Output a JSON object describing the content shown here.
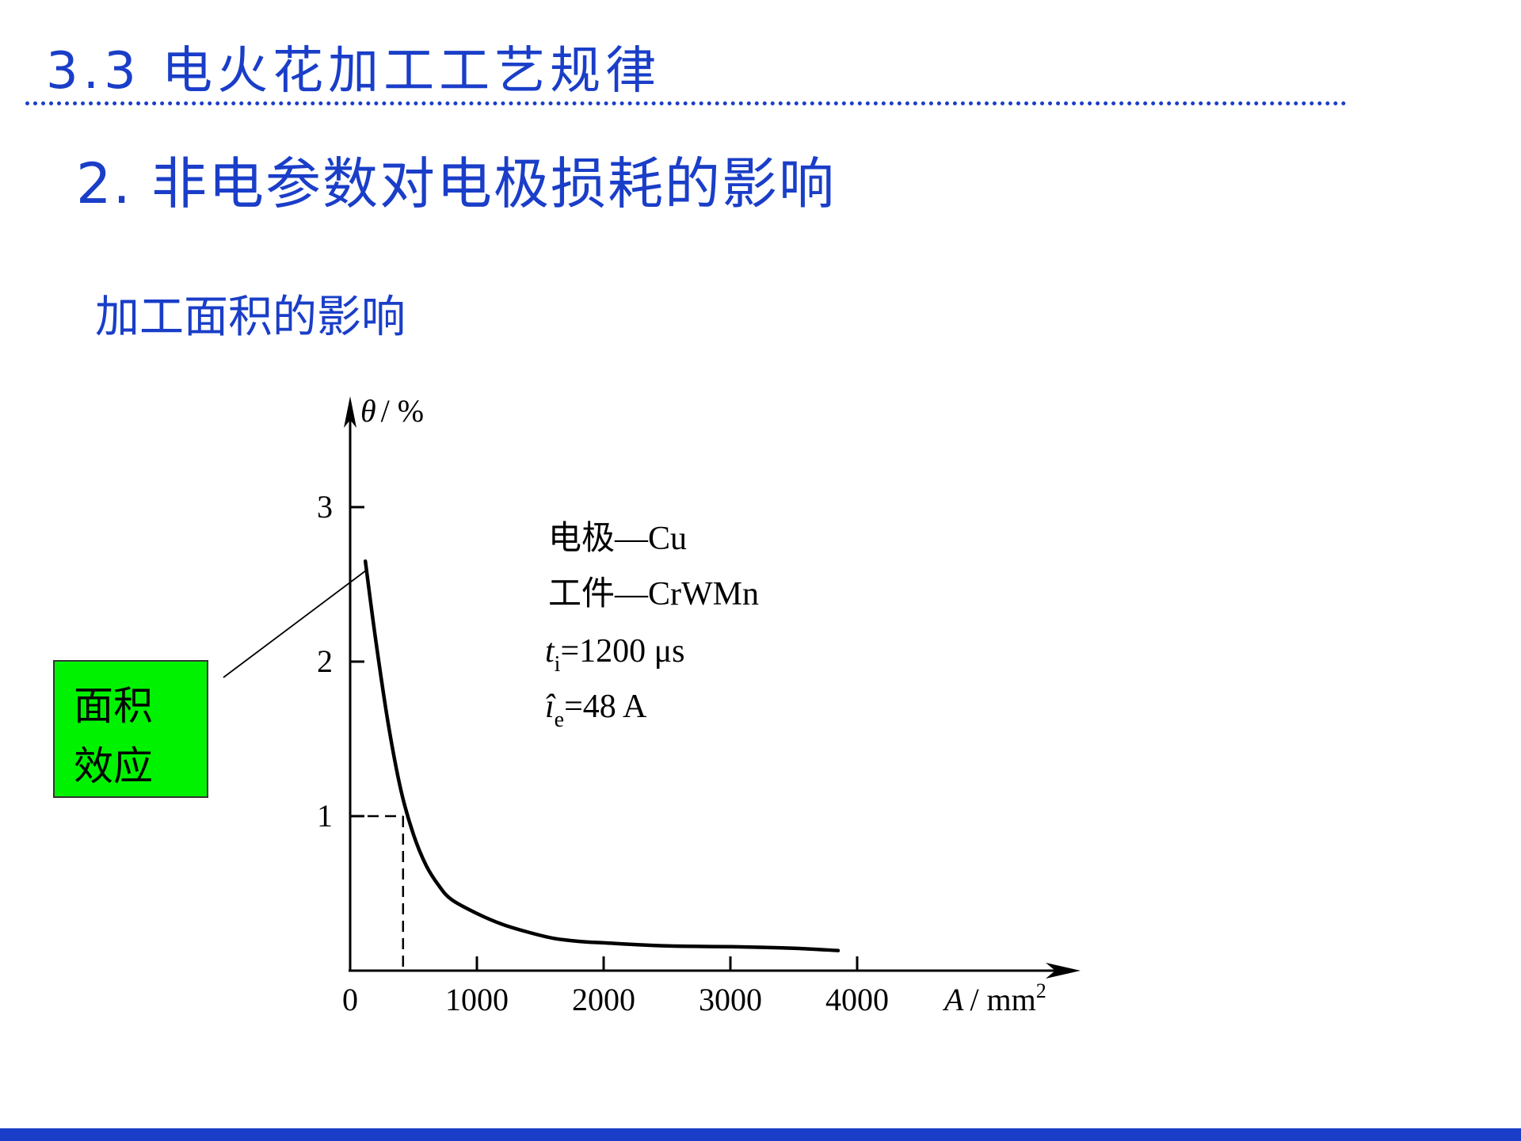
{
  "section_title": "3.3 电火花加工工艺规律",
  "subtitle": "2. 非电参数对电极损耗的影响",
  "heading": "加工面积的影响",
  "callout": {
    "line1": "面积",
    "line2": "效应",
    "color": "#00f200"
  },
  "colors": {
    "accent": "#1a3ec8"
  },
  "chart_data": {
    "type": "line",
    "x": [
      120,
      200,
      300,
      400,
      500,
      600,
      700,
      800,
      1000,
      1200,
      1400,
      1600,
      1800,
      2000,
      2500,
      3000,
      3500,
      3850
    ],
    "series": [
      {
        "values": [
          2.65,
          2.15,
          1.6,
          1.17,
          0.88,
          0.68,
          0.55,
          0.46,
          0.37,
          0.3,
          0.25,
          0.21,
          0.19,
          0.18,
          0.16,
          0.155,
          0.145,
          0.13
        ]
      }
    ],
    "xlim": [
      0,
      5500
    ],
    "ylim": [
      0,
      3.6
    ],
    "xticks": [
      0,
      1000,
      2000,
      3000,
      4000
    ],
    "xtick_labels": [
      "0",
      "1000",
      "2000",
      "3000",
      "4000"
    ],
    "yticks": [
      1,
      2,
      3
    ],
    "ytick_labels": [
      "1",
      "2",
      "3"
    ],
    "ylabel": {
      "symbol": "θ",
      "unit": "/ %"
    },
    "xlabel": {
      "symbol": "A",
      "unit": "/ mm",
      "sup": "2"
    },
    "reference_point": {
      "x": 380,
      "y": 1
    },
    "annotations": {
      "electrode": "电极—Cu",
      "workpiece": "工件—CrWMn",
      "ti": {
        "symbol": "t",
        "sub": "i",
        "value": "=1200 μs"
      },
      "ie": {
        "symbol": "î",
        "sub": "e",
        "value": "=48 A"
      }
    },
    "grid": false
  }
}
